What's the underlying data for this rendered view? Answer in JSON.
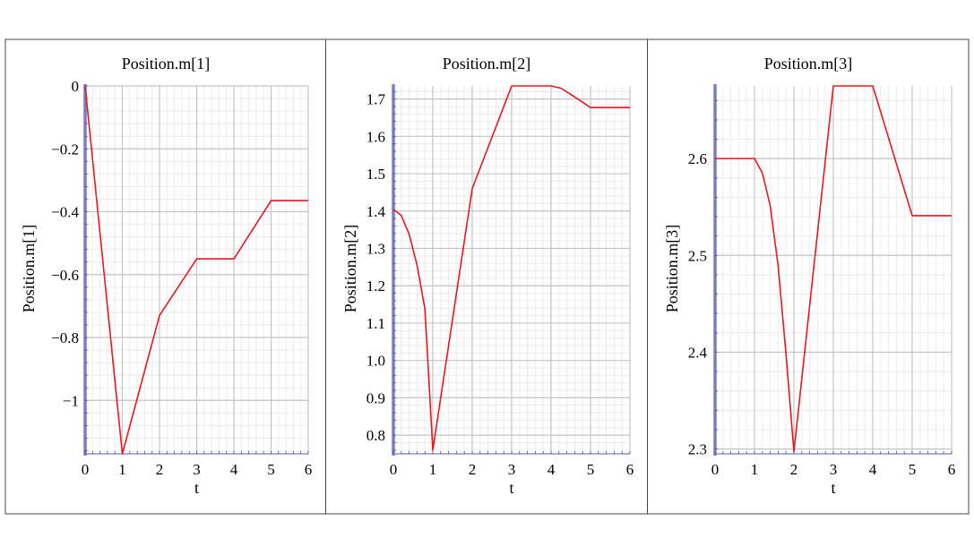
{
  "charts": [
    {
      "title": "Position.m[1]",
      "xlabel": "t",
      "ylabel": "Position.m[1]",
      "xlim": [
        0,
        6
      ],
      "ylim": [
        -1.17,
        0
      ],
      "x_ticks": [
        0,
        1,
        2,
        3,
        4,
        5,
        6
      ],
      "x_tick_labels": [
        "0",
        "1",
        "2",
        "3",
        "4",
        "5",
        "6"
      ],
      "y_ticks": [
        0,
        -0.2,
        -0.4,
        -0.6,
        -0.8,
        -1
      ],
      "y_tick_labels": [
        "0",
        "−0.2",
        "−0.4",
        "−0.6",
        "−0.8",
        "−1"
      ]
    },
    {
      "title": "Position.m[2]",
      "xlabel": "t",
      "ylabel": "Position.m[2]",
      "xlim": [
        0,
        6
      ],
      "ylim": [
        0.75,
        1.735
      ],
      "x_ticks": [
        0,
        1,
        2,
        3,
        4,
        5,
        6
      ],
      "x_tick_labels": [
        "0",
        "1",
        "2",
        "3",
        "4",
        "5",
        "6"
      ],
      "y_ticks": [
        0.8,
        0.9,
        1.0,
        1.1,
        1.2,
        1.3,
        1.4,
        1.5,
        1.6,
        1.7
      ],
      "y_tick_labels": [
        "0.8",
        "0.9",
        "1.0",
        "1.1",
        "1.2",
        "1.3",
        "1.4",
        "1.5",
        "1.6",
        "1.7"
      ]
    },
    {
      "title": "Position.m[3]",
      "xlabel": "t",
      "ylabel": "Position.m[3]",
      "xlim": [
        0,
        6
      ],
      "ylim": [
        2.295,
        2.675
      ],
      "x_ticks": [
        0,
        1,
        2,
        3,
        4,
        5,
        6
      ],
      "x_tick_labels": [
        "0",
        "1",
        "2",
        "3",
        "4",
        "5",
        "6"
      ],
      "y_ticks": [
        2.3,
        2.4,
        2.5,
        2.6
      ],
      "y_tick_labels": [
        "2.3",
        "2.4",
        "2.5",
        "2.6"
      ]
    }
  ],
  "chart_data": [
    {
      "type": "line",
      "title": "Position.m[1]",
      "xlabel": "t",
      "ylabel": "Position.m[1]",
      "xlim": [
        0,
        6
      ],
      "ylim": [
        -1.17,
        0
      ],
      "grid": true,
      "series": [
        {
          "color": "#e8191e",
          "x": [
            0,
            1,
            2,
            3,
            4,
            5,
            6
          ],
          "y": [
            0,
            -1.17,
            -0.73,
            -0.55,
            -0.55,
            -0.365,
            -0.365
          ]
        }
      ]
    },
    {
      "type": "line",
      "title": "Position.m[2]",
      "xlabel": "t",
      "ylabel": "Position.m[2]",
      "xlim": [
        0,
        6
      ],
      "ylim": [
        0.75,
        1.735
      ],
      "grid": true,
      "series": [
        {
          "color": "#e8191e",
          "x": [
            0,
            0.2,
            0.4,
            0.6,
            0.8,
            1,
            2,
            3,
            4,
            4.25,
            4.5,
            4.75,
            5,
            6
          ],
          "y": [
            1.405,
            1.388,
            1.338,
            1.255,
            1.138,
            0.76,
            1.46,
            1.735,
            1.735,
            1.729,
            1.712,
            1.695,
            1.677,
            1.677
          ]
        }
      ]
    },
    {
      "type": "line",
      "title": "Position.m[3]",
      "xlabel": "t",
      "ylabel": "Position.m[3]",
      "xlim": [
        0,
        6
      ],
      "ylim": [
        2.295,
        2.675
      ],
      "grid": true,
      "series": [
        {
          "color": "#e8191e",
          "x": [
            0,
            1,
            1.2,
            1.4,
            1.6,
            1.8,
            2,
            3,
            4,
            5,
            6
          ],
          "y": [
            2.6,
            2.6,
            2.585,
            2.551,
            2.489,
            2.398,
            2.297,
            2.675,
            2.675,
            2.541,
            2.541
          ]
        }
      ]
    }
  ]
}
